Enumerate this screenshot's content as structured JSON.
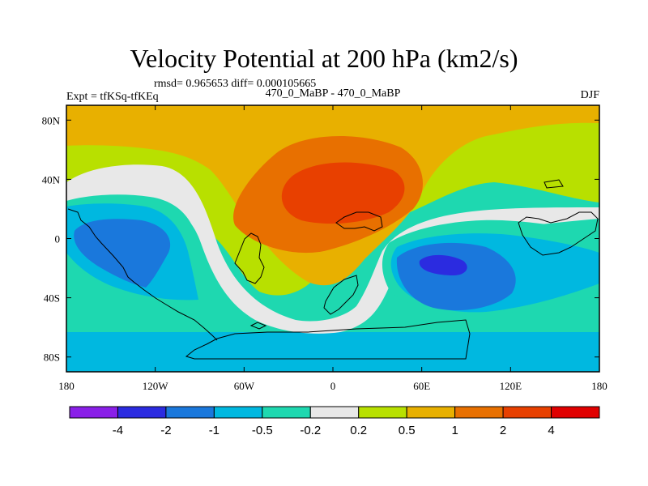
{
  "chart_data": {
    "type": "contour-map",
    "title": "Velocity Potential at 200 hPa (km2/s)",
    "stats_line": "rmsd= 0.965653 diff= 0.000105665",
    "left_string": "Expt = tfKSq-tfKEq",
    "center_string": "470_0_MaBP - 470_0_MaBP",
    "right_string": "DJF",
    "x_axis": {
      "range": [
        -180,
        180
      ],
      "ticks": [
        -180,
        -120,
        -60,
        0,
        60,
        120,
        180
      ],
      "tick_labels": [
        "180",
        "120W",
        "60W",
        "0",
        "60E",
        "120E",
        "180"
      ]
    },
    "y_axis": {
      "range": [
        -90,
        90
      ],
      "ticks": [
        80,
        40,
        0,
        -40,
        -80
      ],
      "tick_labels": [
        "80N",
        "40N",
        "0",
        "40S",
        "80S"
      ]
    },
    "colorbar": {
      "levels": [
        -4,
        -2,
        -1,
        -0.5,
        -0.2,
        0.2,
        0.5,
        1,
        2,
        4
      ],
      "labels": [
        "-4",
        "-2",
        "-1",
        "-0.5",
        "-0.2",
        "0.2",
        "0.5",
        "1",
        "2",
        "4"
      ],
      "colors": [
        "#8a1fe8",
        "#2b2be0",
        "#1a78dc",
        "#00b8e0",
        "#1ed8b0",
        "#e8e8e8",
        "#b8e000",
        "#e8b000",
        "#e87000",
        "#e84000",
        "#e00000"
      ]
    },
    "features": [
      {
        "name": "positive-center",
        "lon": 0,
        "lat": 25,
        "max_level": "2 to 4"
      },
      {
        "name": "negative-center-indian-ocean",
        "lon": 65,
        "lat": -18,
        "min_level": "-4 to -2"
      },
      {
        "name": "negative-center-pacific",
        "lon": -140,
        "lat": -5,
        "min_level": "-2 to -1"
      }
    ]
  }
}
